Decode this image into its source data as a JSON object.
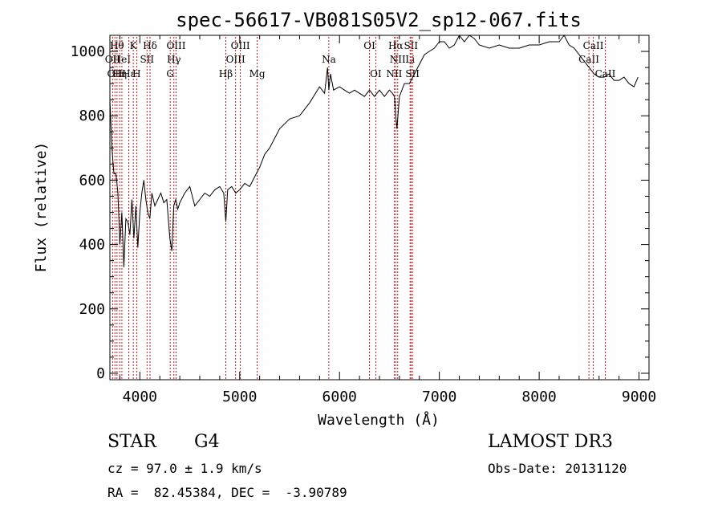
{
  "chart_data": {
    "type": "line",
    "title": "spec-56617-VB081S05V2_sp12-067.fits",
    "xlabel": "Wavelength (Å)",
    "ylabel": "Flux (relative)",
    "xlim": [
      3700,
      9100
    ],
    "ylim": [
      -20,
      1050
    ],
    "xticks": [
      4000,
      5000,
      6000,
      7000,
      8000,
      9000
    ],
    "xtick_labels": [
      "4000",
      "5000",
      "6000",
      "7000",
      "8000",
      "9000"
    ],
    "yticks": [
      0,
      200,
      400,
      600,
      800,
      1000
    ],
    "ytick_labels": [
      "0",
      "200",
      "400",
      "600",
      "800",
      "1000"
    ],
    "grid": false,
    "spectrum": {
      "x": [
        3700,
        3720,
        3740,
        3760,
        3780,
        3800,
        3820,
        3840,
        3860,
        3880,
        3900,
        3920,
        3940,
        3960,
        3980,
        4000,
        4020,
        4040,
        4060,
        4080,
        4100,
        4120,
        4150,
        4180,
        4210,
        4240,
        4270,
        4300,
        4320,
        4340,
        4360,
        4380,
        4400,
        4450,
        4500,
        4550,
        4600,
        4650,
        4700,
        4750,
        4800,
        4840,
        4861,
        4880,
        4920,
        4960,
        5000,
        5050,
        5100,
        5150,
        5200,
        5250,
        5300,
        5400,
        5500,
        5600,
        5700,
        5800,
        5850,
        5880,
        5893,
        5910,
        5940,
        6000,
        6050,
        6100,
        6150,
        6200,
        6250,
        6300,
        6350,
        6400,
        6450,
        6500,
        6530,
        6550,
        6563,
        6575,
        6600,
        6650,
        6700,
        6750,
        6800,
        6850,
        6900,
        6950,
        7000,
        7050,
        7100,
        7150,
        7200,
        7250,
        7300,
        7350,
        7400,
        7500,
        7600,
        7700,
        7800,
        7900,
        8000,
        8100,
        8200,
        8250,
        8300,
        8350,
        8400,
        8450,
        8500,
        8550,
        8600,
        8650,
        8700,
        8750,
        8800,
        8850,
        8900,
        8950,
        8990
      ],
      "y": [
        850,
        700,
        620,
        620,
        560,
        400,
        500,
        330,
        480,
        470,
        430,
        540,
        420,
        520,
        390,
        500,
        560,
        600,
        540,
        500,
        480,
        560,
        520,
        540,
        560,
        530,
        540,
        420,
        380,
        520,
        540,
        510,
        530,
        560,
        580,
        520,
        540,
        560,
        550,
        570,
        580,
        560,
        470,
        570,
        580,
        560,
        570,
        590,
        580,
        610,
        640,
        680,
        700,
        760,
        790,
        800,
        840,
        890,
        870,
        950,
        880,
        930,
        880,
        890,
        880,
        870,
        880,
        870,
        860,
        880,
        860,
        880,
        860,
        880,
        870,
        860,
        800,
        760,
        860,
        900,
        900,
        930,
        960,
        990,
        1000,
        1010,
        1030,
        1030,
        1010,
        1020,
        1050,
        1030,
        1050,
        1040,
        1020,
        1010,
        1020,
        1010,
        1010,
        1020,
        1020,
        1030,
        1030,
        1050,
        1020,
        1010,
        990,
        970,
        950,
        930,
        920,
        920,
        930,
        910,
        910,
        920,
        900,
        890,
        920
      ]
    },
    "line_markers": [
      {
        "x": 3727,
        "label": "OII",
        "row": 2
      },
      {
        "x": 3750,
        "label": "OII",
        "row": 3
      },
      {
        "x": 3771,
        "label": "Hθ",
        "row": 1
      },
      {
        "x": 3798,
        "label": "Hη",
        "row": 3
      },
      {
        "x": 3820,
        "label": "HeI",
        "row": 2
      },
      {
        "x": 3889,
        "label": "Hε",
        "row": 3
      },
      {
        "x": 3934,
        "label": "K",
        "row": 1
      },
      {
        "x": 3968,
        "label": "H",
        "row": 3
      },
      {
        "x": 4072,
        "label": "SII",
        "row": 2
      },
      {
        "x": 4102,
        "label": "Hδ",
        "row": 1
      },
      {
        "x": 4304,
        "label": "G",
        "row": 3
      },
      {
        "x": 4341,
        "label": "Hγ",
        "row": 2
      },
      {
        "x": 4363,
        "label": "OIII",
        "row": 1
      },
      {
        "x": 4861,
        "label": "Hβ",
        "row": 3
      },
      {
        "x": 4959,
        "label": "OIII",
        "row": 2
      },
      {
        "x": 5007,
        "label": "OIII",
        "row": 1
      },
      {
        "x": 5175,
        "label": "Mg",
        "row": 3
      },
      {
        "x": 5893,
        "label": "Na",
        "row": 2
      },
      {
        "x": 6300,
        "label": "OI",
        "row": 1
      },
      {
        "x": 6363,
        "label": "OI",
        "row": 3
      },
      {
        "x": 6548,
        "label": "NII",
        "row": 3
      },
      {
        "x": 6563,
        "label": "Hα",
        "row": 1
      },
      {
        "x": 6583,
        "label": "NII",
        "row": 2
      },
      {
        "x": 6707,
        "label": "Li",
        "row": 2
      },
      {
        "x": 6716,
        "label": "SII",
        "row": 1
      },
      {
        "x": 6731,
        "label": "SII",
        "row": 3
      },
      {
        "x": 8498,
        "label": "CaII",
        "row": 2
      },
      {
        "x": 8542,
        "label": "CaII",
        "row": 1
      },
      {
        "x": 8662,
        "label": "CaII",
        "row": 3
      }
    ]
  },
  "info": {
    "class_label": "STAR",
    "subclass": "G4",
    "survey": "LAMOST DR3",
    "redshift_line": "cz = 97.0 ± 1.9 km/s",
    "obs_date": "Obs-Date: 20131120",
    "coords": "RA =  82.45384, DEC =  -3.90789"
  },
  "colors": {
    "spectrum": "#000000",
    "marker": "#c00000",
    "axis": "#000000",
    "background": "#ffffff"
  }
}
